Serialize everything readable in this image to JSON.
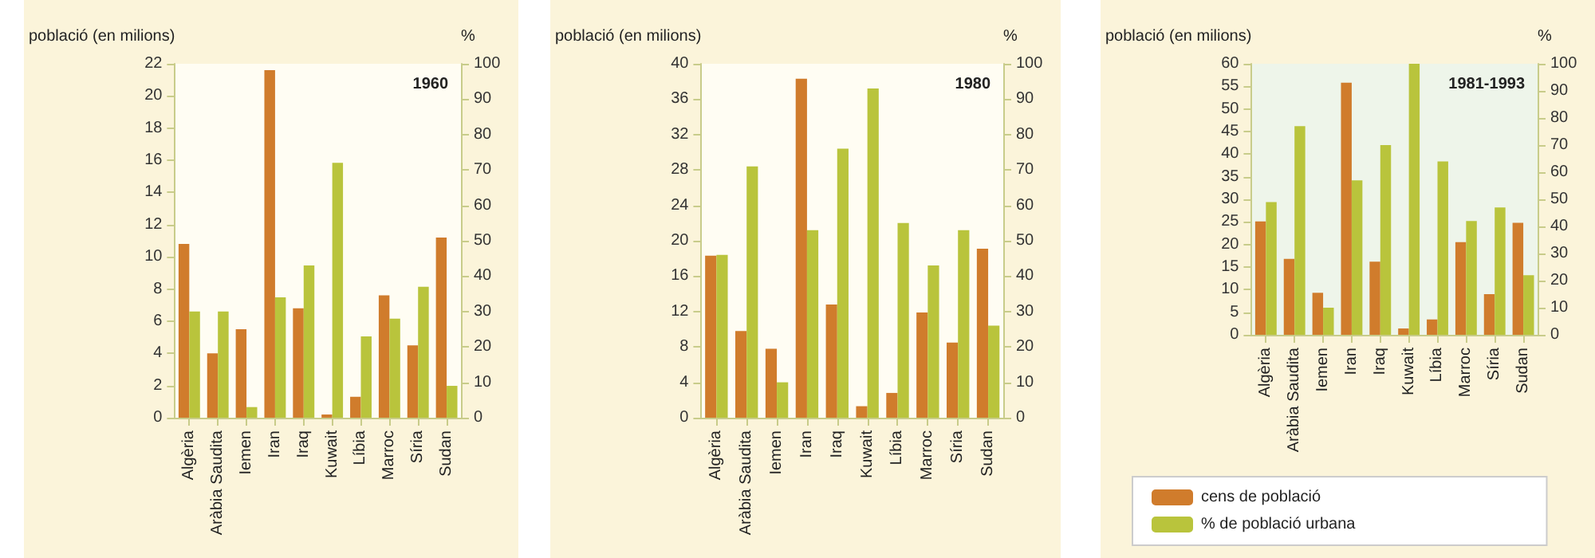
{
  "chart_data": [
    {
      "type": "bar",
      "annotations": [
        "1960"
      ],
      "ylabel": "població (en milions)",
      "y2label": "%",
      "categories": [
        "Algèria",
        "Aràbia Saudita",
        "Iemen",
        "Iran",
        "Iraq",
        "Kuwait",
        "Líbia",
        "Marroc",
        "Síria",
        "Sudan"
      ],
      "series": [
        {
          "color": "#d07c2c",
          "values": [
            10.8,
            4.0,
            5.5,
            21.6,
            6.8,
            0.2,
            1.3,
            7.6,
            4.5,
            11.2
          ]
        },
        {
          "color": "#b9c43c",
          "axis": "y2",
          "values": [
            30,
            30,
            3,
            34,
            43,
            72,
            23,
            28,
            37,
            9
          ]
        }
      ],
      "ylim": [
        0,
        22
      ],
      "yticks": [
        0,
        2,
        4,
        6,
        8,
        10,
        12,
        14,
        16,
        18,
        20,
        22
      ],
      "y2lim": [
        0,
        100
      ],
      "y2ticks": [
        0,
        10,
        20,
        30,
        40,
        50,
        60,
        70,
        80,
        90,
        100
      ],
      "grid": false,
      "legend": false
    },
    {
      "type": "bar",
      "annotations": [
        "1980"
      ],
      "ylabel": "població (en milions)",
      "y2label": "%",
      "categories": [
        "Algèria",
        "Aràbia Saudita",
        "Iemen",
        "Iran",
        "Iraq",
        "Kuwait",
        "Líbia",
        "Marroc",
        "Síria",
        "Sudan"
      ],
      "series": [
        {
          "color": "#d07c2c",
          "values": [
            18.3,
            9.8,
            7.8,
            38.3,
            12.8,
            1.3,
            2.8,
            11.9,
            8.5,
            19.1
          ]
        },
        {
          "color": "#b9c43c",
          "axis": "y2",
          "values": [
            46,
            71,
            10,
            53,
            76,
            93,
            55,
            43,
            53,
            26
          ]
        }
      ],
      "ylim": [
        0,
        40
      ],
      "yticks": [
        0,
        4,
        8,
        12,
        16,
        20,
        24,
        28,
        32,
        36,
        40
      ],
      "y2lim": [
        0,
        100
      ],
      "y2ticks": [
        0,
        10,
        20,
        30,
        40,
        50,
        60,
        70,
        80,
        90,
        100
      ],
      "grid": false,
      "legend": false
    },
    {
      "type": "bar",
      "annotations": [
        "1981-1993"
      ],
      "ylabel": "població (en milions)",
      "y2label": "%",
      "categories": [
        "Algèria",
        "Aràbia Saudita",
        "Iemen",
        "Iran",
        "Iraq",
        "Kuwait",
        "Líbia",
        "Marroc",
        "Síria",
        "Sudan"
      ],
      "series": [
        {
          "name": "cens de població",
          "color": "#d07c2c",
          "values": [
            25.1,
            16.8,
            9.3,
            55.8,
            16.2,
            1.4,
            3.4,
            20.5,
            9.0,
            24.8
          ]
        },
        {
          "name": "% de població urbana",
          "color": "#b9c43c",
          "axis": "y2",
          "values": [
            49,
            77,
            10,
            57,
            70,
            100,
            64,
            42,
            47,
            22
          ]
        }
      ],
      "ylim": [
        0,
        60
      ],
      "yticks": [
        0,
        5,
        10,
        15,
        20,
        25,
        30,
        35,
        40,
        45,
        50,
        55,
        60
      ],
      "y2lim": [
        0,
        100
      ],
      "y2ticks": [
        0,
        10,
        20,
        30,
        40,
        50,
        60,
        70,
        80,
        90,
        100
      ],
      "grid": false,
      "legend": "bottom"
    }
  ]
}
